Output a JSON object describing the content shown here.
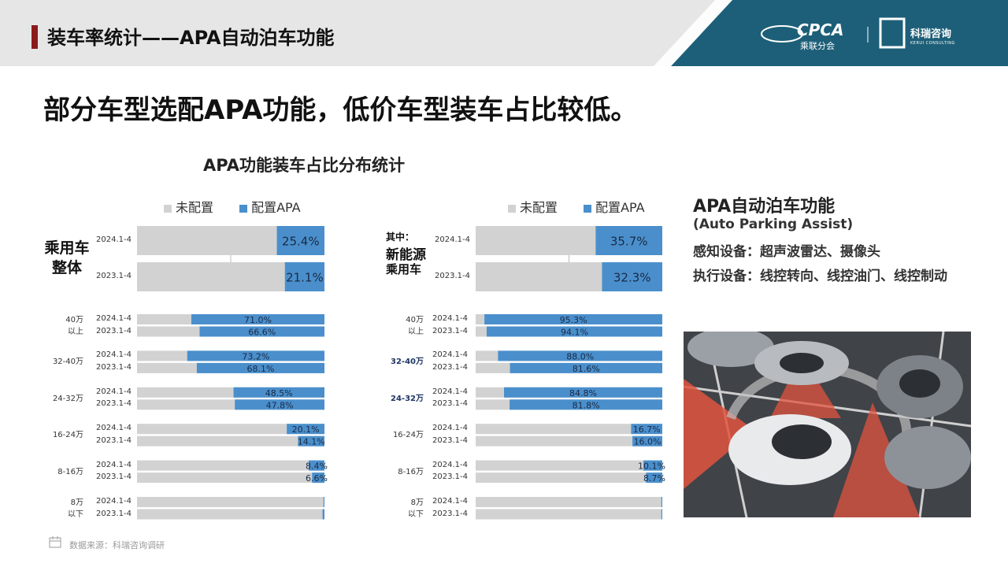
{
  "header": {
    "title": "装车率统计——APA自动泊车功能",
    "logo_cpca": "CPCA",
    "logo_cpca_cn": "乘联分会",
    "logo_kerui_cn": "科瑞咨询",
    "logo_kerui_en": "KERUI CONSULTING"
  },
  "headline": "部分车型选配APA功能，低价车型装车占比较低。",
  "chart_title": "APA功能装车占比分布统计",
  "legend": {
    "unconfigured": "未配置",
    "configured": "配置APA"
  },
  "colors": {
    "configured": "#4a8fcc",
    "unconfigured": "#d2d2d2",
    "accent": "#8b1a1a",
    "navy": "#1f3564"
  },
  "left_panel": {
    "group_label": [
      "乘用车",
      "整体"
    ]
  },
  "right_panel": {
    "group_prefix": "其中：",
    "group_label": [
      "新能源",
      "乘用车"
    ]
  },
  "info": {
    "title": "APA自动泊车功能",
    "subtitle": "(Auto Parking Assist)",
    "line1": "感知设备：超声波雷达、摄像头",
    "line2": "执行设备：线控转向、线控油门、线控制动"
  },
  "photo": {
    "icon": "parking-assist-photo"
  },
  "source": "数据来源：科瑞咨询调研",
  "chart_data": [
    {
      "type": "bar",
      "orientation": "horizontal",
      "stacked": true,
      "xlim": [
        0,
        100
      ],
      "group": "乘用车整体",
      "overall": {
        "periods": [
          "2024.1-4",
          "2023.1-4"
        ],
        "values": [
          25.4,
          21.1
        ],
        "labels": [
          "25.4%",
          "21.1%"
        ]
      },
      "price_bands": [
        {
          "name": [
            "40万",
            "以上"
          ],
          "periods": [
            "2024.1-4",
            "2023.1-4"
          ],
          "values": [
            71.0,
            66.6
          ],
          "labels": [
            "71.0%",
            "66.6%"
          ]
        },
        {
          "name": [
            "32-40万"
          ],
          "periods": [
            "2024.1-4",
            "2023.1-4"
          ],
          "values": [
            73.2,
            68.1
          ],
          "labels": [
            "73.2%",
            "68.1%"
          ]
        },
        {
          "name": [
            "24-32万"
          ],
          "periods": [
            "2024.1-4",
            "2023.1-4"
          ],
          "values": [
            48.5,
            47.8
          ],
          "labels": [
            "48.5%",
            "47.8%"
          ]
        },
        {
          "name": [
            "16-24万"
          ],
          "periods": [
            "2024.1-4",
            "2023.1-4"
          ],
          "values": [
            20.1,
            14.1
          ],
          "labels": [
            "20.1%",
            "14.1%"
          ]
        },
        {
          "name": [
            "8-16万"
          ],
          "periods": [
            "2024.1-4",
            "2023.1-4"
          ],
          "values": [
            8.4,
            6.6
          ],
          "labels": [
            "8.4%",
            "6.6%"
          ]
        },
        {
          "name": [
            "8万",
            "以下"
          ],
          "periods": [
            "2024.1-4",
            "2023.1-4"
          ],
          "values": [
            0.5,
            1.0
          ],
          "labels": [
            "",
            ""
          ]
        }
      ]
    },
    {
      "type": "bar",
      "orientation": "horizontal",
      "stacked": true,
      "xlim": [
        0,
        100
      ],
      "group": "新能源乘用车",
      "overall": {
        "periods": [
          "2024.1-4",
          "2023.1-4"
        ],
        "values": [
          35.7,
          32.3
        ],
        "labels": [
          "35.7%",
          "32.3%"
        ]
      },
      "price_bands": [
        {
          "name": [
            "40万",
            "以上"
          ],
          "periods": [
            "2024.1-4",
            "2023.1-4"
          ],
          "values": [
            95.3,
            94.1
          ],
          "labels": [
            "95.3%",
            "94.1%"
          ]
        },
        {
          "name": [
            "32-40万"
          ],
          "periods": [
            "2024.1-4",
            "2023.1-4"
          ],
          "values": [
            88.0,
            81.6
          ],
          "labels": [
            "88.0%",
            "81.6%"
          ]
        },
        {
          "name": [
            "24-32万"
          ],
          "periods": [
            "2024.1-4",
            "2023.1-4"
          ],
          "values": [
            84.8,
            81.8
          ],
          "labels": [
            "84.8%",
            "81.8%"
          ]
        },
        {
          "name": [
            "16-24万"
          ],
          "periods": [
            "2024.1-4",
            "2023.1-4"
          ],
          "values": [
            16.7,
            16.0
          ],
          "labels": [
            "16.7%",
            "16.0%"
          ]
        },
        {
          "name": [
            "8-16万"
          ],
          "periods": [
            "2024.1-4",
            "2023.1-4"
          ],
          "values": [
            10.1,
            8.7
          ],
          "labels": [
            "10.1%",
            "8.7%"
          ]
        },
        {
          "name": [
            "8万",
            "以下"
          ],
          "periods": [
            "2024.1-4",
            "2023.1-4"
          ],
          "values": [
            0.5,
            0.5
          ],
          "labels": [
            "",
            ""
          ]
        }
      ]
    }
  ]
}
